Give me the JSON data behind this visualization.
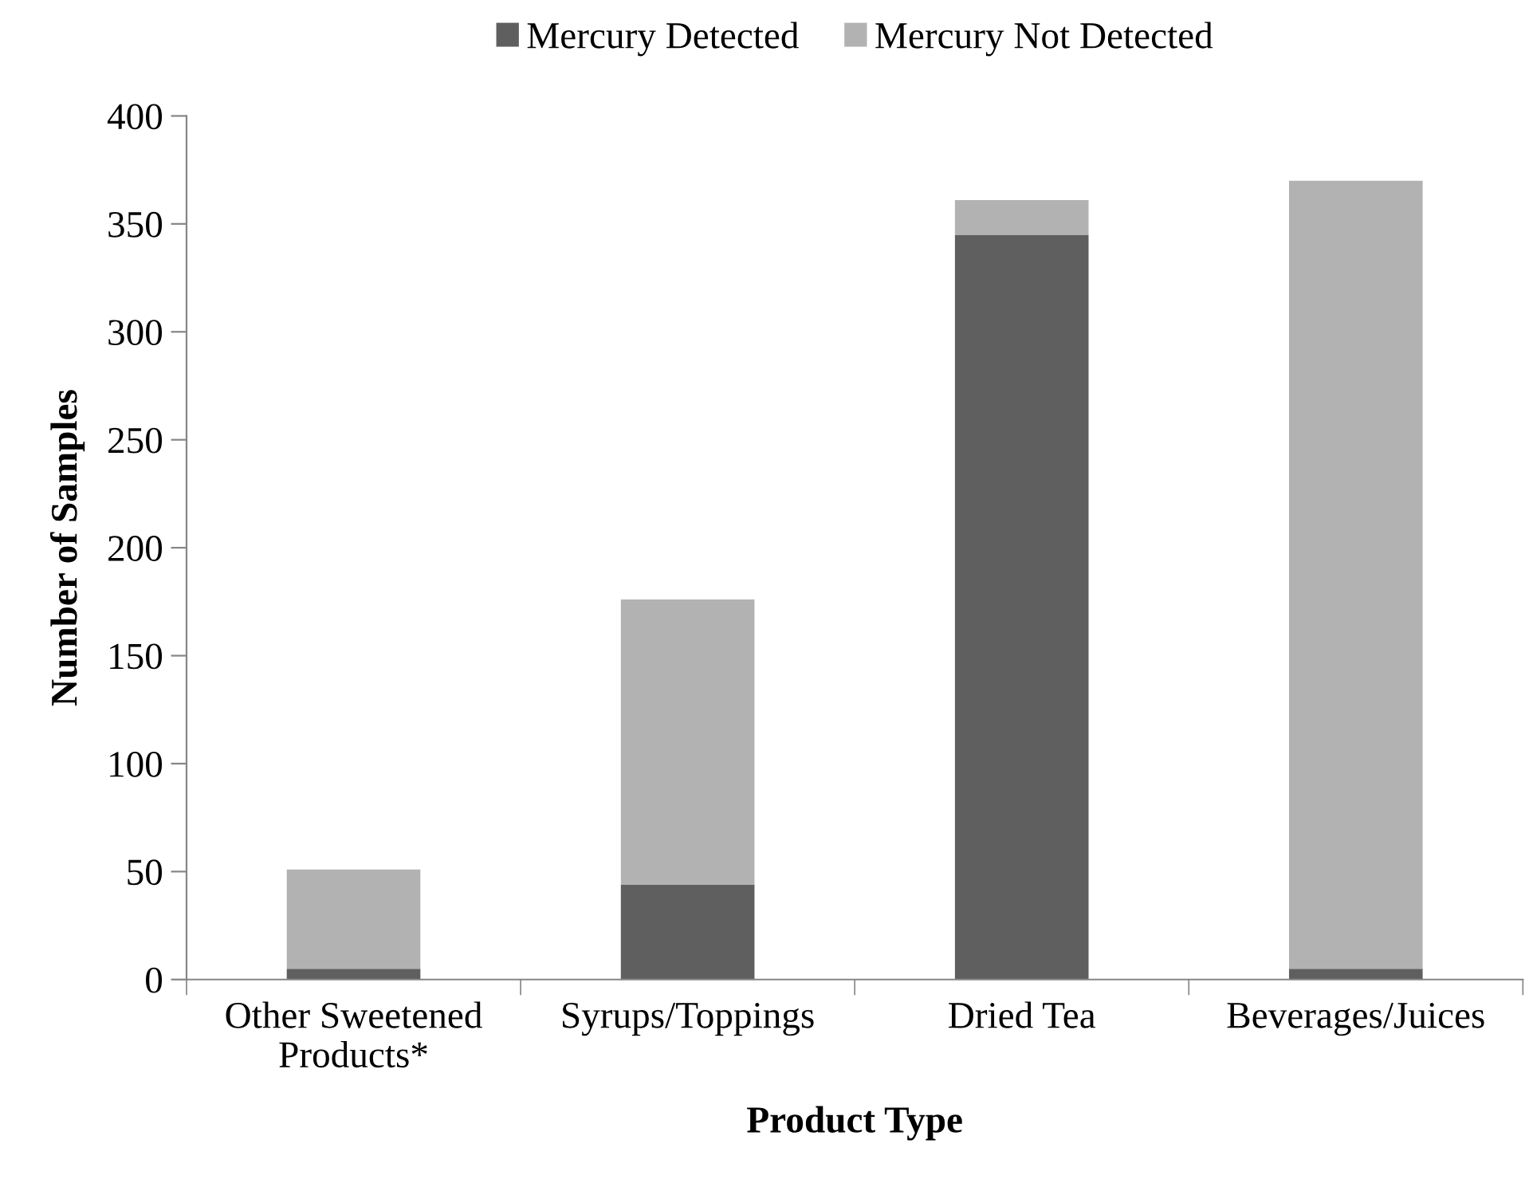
{
  "chart_data": {
    "type": "bar",
    "stacked": true,
    "xlabel": "Product Type",
    "ylabel": "Number of Samples",
    "categories": [
      "Other Sweetened\nProducts*",
      "Syrups/Toppings",
      "Dried Tea",
      "Beverages/Juices"
    ],
    "series": [
      {
        "name": "Mercury Detected",
        "color": "#5f5f5f",
        "values": [
          5,
          44,
          345,
          5
        ]
      },
      {
        "name": "Mercury Not Detected",
        "color": "#b2b2b2",
        "values": [
          46,
          132,
          16,
          365
        ]
      }
    ],
    "ylim": [
      0,
      400
    ],
    "yticks": [
      0,
      50,
      100,
      150,
      200,
      250,
      300,
      350,
      400
    ],
    "grid": false,
    "legend": "top"
  }
}
